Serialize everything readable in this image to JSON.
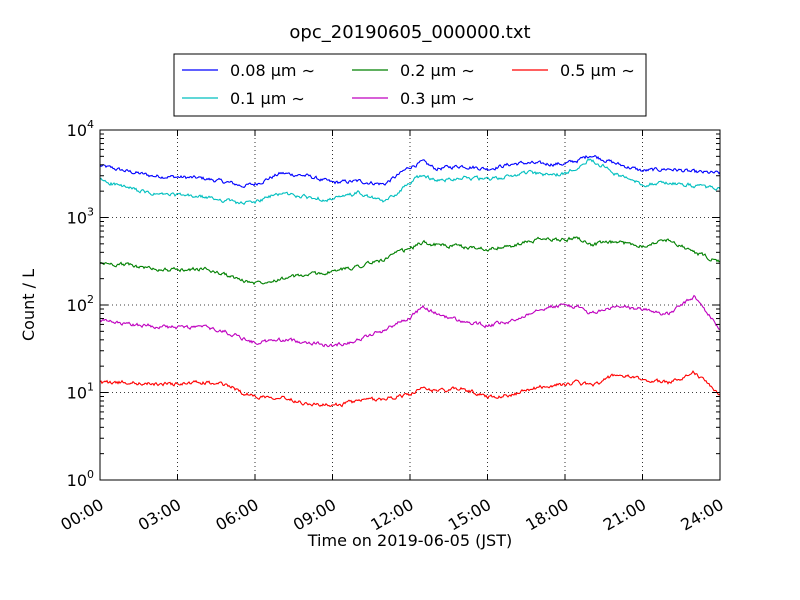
{
  "chart_data": {
    "type": "line",
    "title": "opc_20190605_000000.txt",
    "xlabel": "Time on 2019-06-05 (JST)",
    "ylabel": "Count / L",
    "yscale": "log",
    "xlim": [
      0,
      24
    ],
    "ylim": [
      1,
      10000
    ],
    "grid": true,
    "legend_position": "top-center",
    "x_ticks": [
      "00:00",
      "03:00",
      "06:00",
      "09:00",
      "12:00",
      "15:00",
      "18:00",
      "21:00",
      "24:00"
    ],
    "y_ticks": [
      {
        "base": "10",
        "exp": "0",
        "value": 1
      },
      {
        "base": "10",
        "exp": "1",
        "value": 10
      },
      {
        "base": "10",
        "exp": "2",
        "value": 100
      },
      {
        "base": "10",
        "exp": "3",
        "value": 1000
      },
      {
        "base": "10",
        "exp": "4",
        "value": 10000
      }
    ],
    "x": [
      0,
      1,
      2,
      3,
      4,
      5,
      5.5,
      6,
      7,
      8,
      9,
      10,
      11,
      11.5,
      12,
      12.5,
      13,
      14,
      15,
      16,
      16.5,
      17,
      18,
      18.5,
      19,
      20,
      21,
      22,
      23,
      24
    ],
    "series": [
      {
        "name": "0.08 µm ∼",
        "color": "#0000ff",
        "values": [
          3900,
          3400,
          3000,
          2900,
          2800,
          2500,
          2300,
          2400,
          3200,
          3000,
          2500,
          2600,
          2400,
          3000,
          3800,
          4300,
          3600,
          3900,
          3600,
          4100,
          4200,
          4100,
          4100,
          4500,
          5200,
          4100,
          3400,
          3600,
          3300,
          3200
        ]
      },
      {
        "name": "0.1 µm ∼",
        "color": "#00bfbf",
        "values": [
          2700,
          2200,
          1850,
          1800,
          1700,
          1550,
          1450,
          1500,
          1900,
          1700,
          1600,
          1900,
          1500,
          1900,
          2500,
          3100,
          2600,
          2900,
          2700,
          3000,
          3300,
          3100,
          3100,
          3900,
          4700,
          3100,
          2400,
          2500,
          2300,
          2100
        ]
      },
      {
        "name": "0.2 µm ∼",
        "color": "#008000",
        "values": [
          300,
          290,
          260,
          250,
          260,
          215,
          190,
          180,
          200,
          220,
          240,
          280,
          330,
          390,
          440,
          520,
          490,
          460,
          440,
          470,
          520,
          560,
          560,
          590,
          490,
          520,
          480,
          560,
          400,
          310
        ]
      },
      {
        "name": "0.3 µm ∼",
        "color": "#bf00bf",
        "values": [
          66,
          60,
          58,
          55,
          56,
          48,
          42,
          37,
          40,
          38,
          34,
          40,
          52,
          62,
          72,
          95,
          80,
          65,
          58,
          65,
          78,
          92,
          100,
          95,
          80,
          95,
          90,
          78,
          125,
          53
        ]
      },
      {
        "name": "0.5 µm ∼",
        "color": "#ff0000",
        "values": [
          13,
          13,
          12.5,
          12.5,
          13,
          12,
          10,
          9,
          9,
          7.5,
          7,
          8,
          8.5,
          9,
          9.5,
          11,
          10.5,
          11,
          9,
          9.5,
          10.5,
          11.5,
          12.5,
          13,
          12,
          16,
          14,
          13,
          17,
          9.5
        ]
      }
    ]
  }
}
